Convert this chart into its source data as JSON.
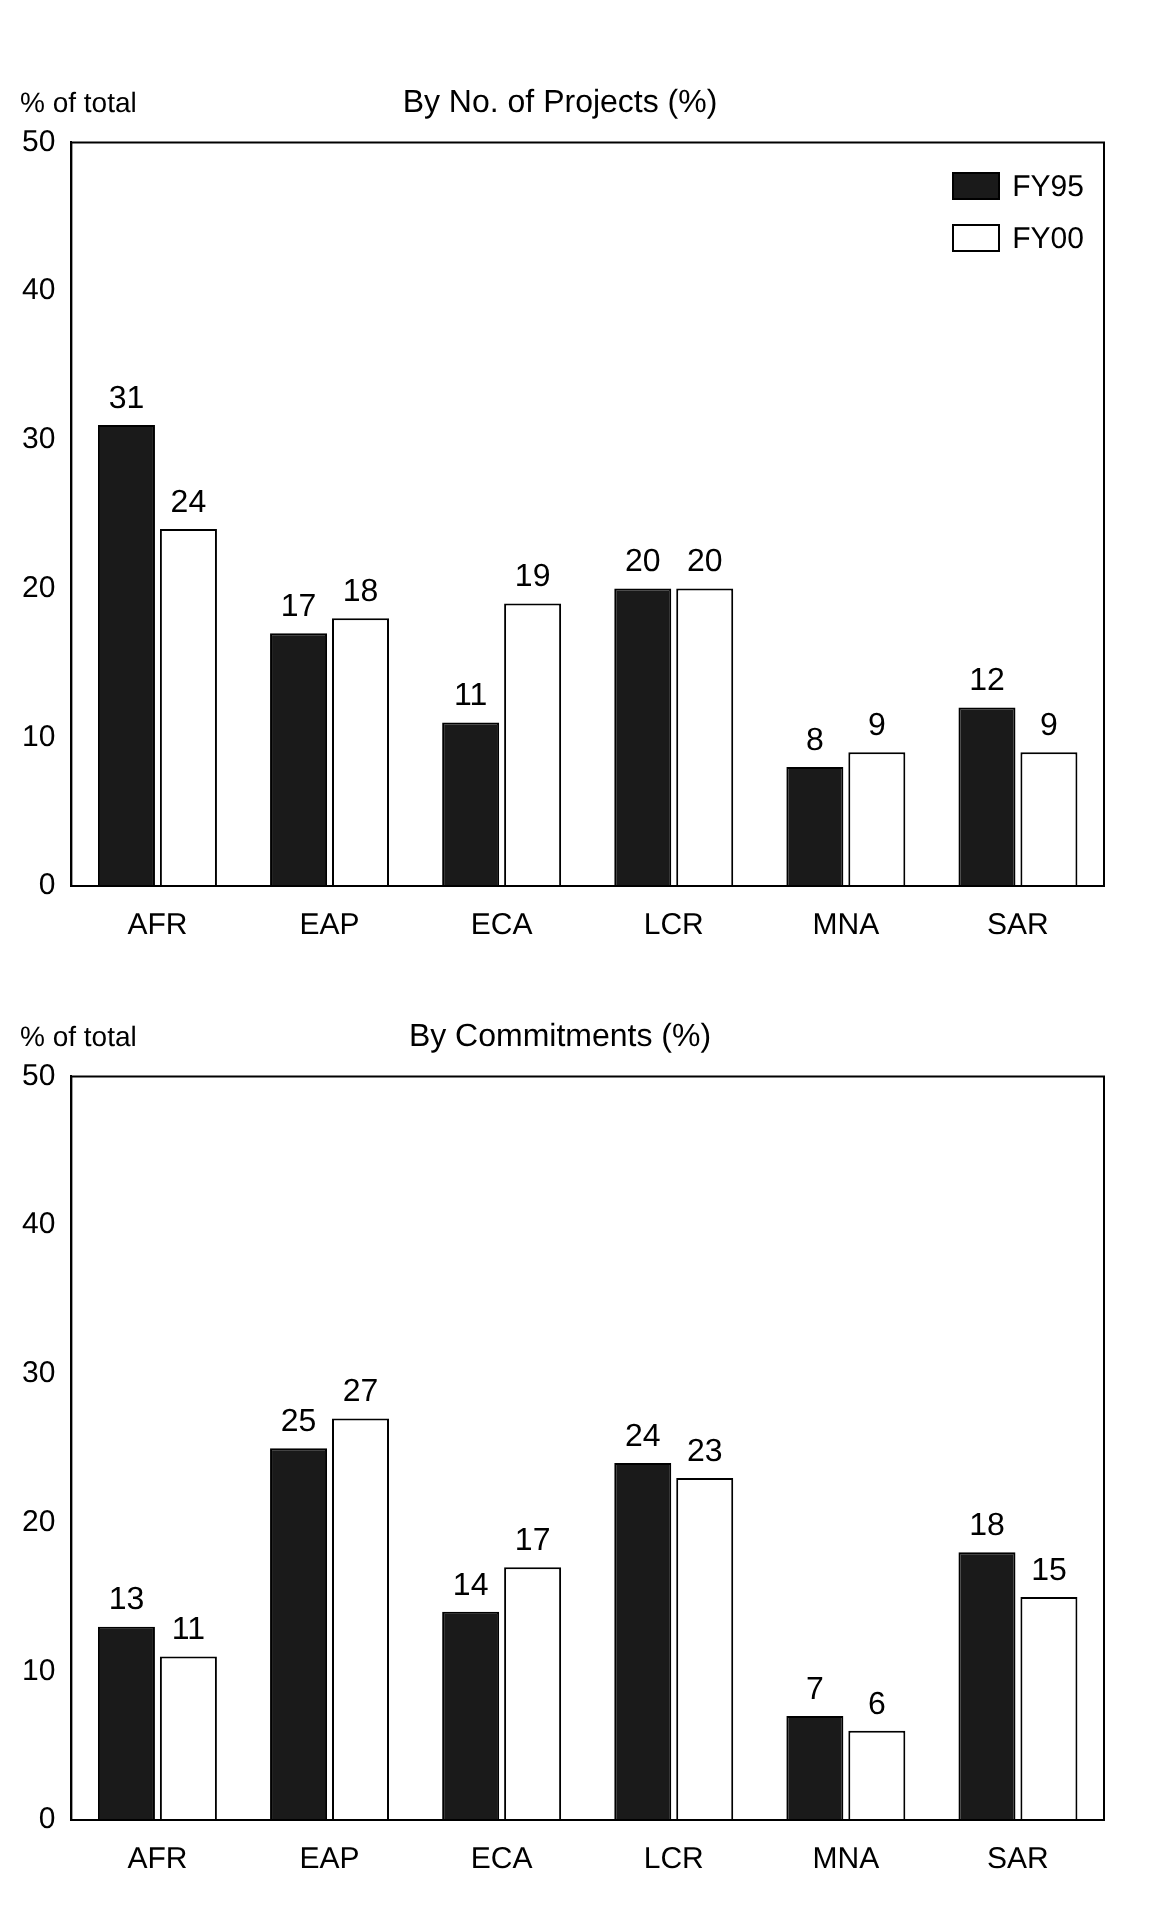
{
  "chart_data": [
    {
      "type": "bar",
      "title": "By No. of Projects (%)",
      "ylabel": "% of total",
      "categories": [
        "AFR",
        "EAP",
        "ECA",
        "LCR",
        "MNA",
        "SAR"
      ],
      "series": [
        {
          "name": "FY95",
          "color": "#1a1a1a",
          "values": [
            31,
            17,
            11,
            20,
            8,
            12
          ]
        },
        {
          "name": "FY00",
          "color": "#ffffff",
          "values": [
            24,
            18,
            19,
            20,
            9,
            9
          ]
        }
      ],
      "ylim": [
        0,
        50
      ],
      "yticks": [
        0,
        10,
        20,
        30,
        40,
        50
      ],
      "data_labels": true,
      "legend": "top right"
    },
    {
      "type": "bar",
      "title": "By Commitments (%)",
      "ylabel": "% of total",
      "categories": [
        "AFR",
        "EAP",
        "ECA",
        "LCR",
        "MNA",
        "SAR"
      ],
      "series": [
        {
          "color": "#1a1a1a",
          "values": [
            13,
            25,
            14,
            24,
            7,
            18
          ]
        },
        {
          "color": "#ffffff",
          "values": [
            11,
            27,
            17,
            23,
            6,
            15
          ]
        }
      ],
      "ylim": [
        0,
        50
      ],
      "yticks": [
        0,
        10,
        20,
        30,
        40,
        50
      ],
      "data_labels": true,
      "legend": false
    }
  ]
}
